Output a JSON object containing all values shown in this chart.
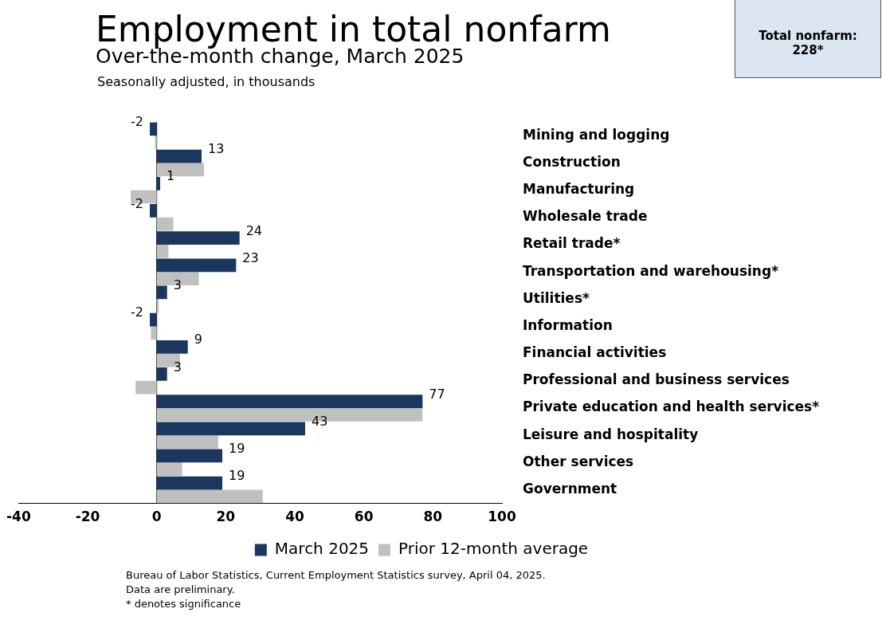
{
  "chart_data": {
    "type": "bar",
    "orientation": "horizontal",
    "title": "Employment in total nonfarm",
    "subtitle": "Over-the-month change, March 2025",
    "ylabel": "Seasonally adjusted, in thousands",
    "categories": [
      "Mining and logging",
      "Construction",
      "Manufacturing",
      "Wholesale trade",
      "Retail trade*",
      "Transportation and warehousing*",
      "Utilities*",
      "Information",
      "Financial activities",
      "Professional and business services",
      "Private education and health services*",
      "Leisure and hospitality",
      "Other services",
      "Government"
    ],
    "series": [
      {
        "name": "March 2025",
        "color": "#1b375e",
        "values": [
          -2,
          13,
          1,
          -2,
          24,
          23,
          3,
          -2,
          9,
          3,
          77,
          43,
          19,
          19
        ],
        "value_labels": [
          "-2",
          "13",
          "1",
          "-2",
          "24",
          "23",
          "3",
          "-2",
          "9",
          "3",
          "77",
          "43",
          "19",
          "19"
        ]
      },
      {
        "name": "Prior 12-month average",
        "color": "#c0c0c0",
        "values": [
          -0.5,
          13.7,
          -7.5,
          4.8,
          3.4,
          12.2,
          0.6,
          -1.7,
          6.7,
          -6.1,
          77,
          17.8,
          7.4,
          30.7
        ]
      }
    ],
    "xlim": [
      -40,
      100
    ],
    "xticks": [
      -40,
      -20,
      0,
      20,
      40,
      60,
      80,
      100
    ],
    "grid": false,
    "legend": "bottom",
    "ref_lines": [
      {
        "axis": "x",
        "value": 0,
        "color": "#000000"
      }
    ],
    "annotations": [
      "Total nonfarm: 228*",
      "Bureau of Labor Statistics, Current Employment Statistics survey, April 04, 2025.",
      "Data are preliminary.",
      "* denotes significance"
    ]
  }
}
